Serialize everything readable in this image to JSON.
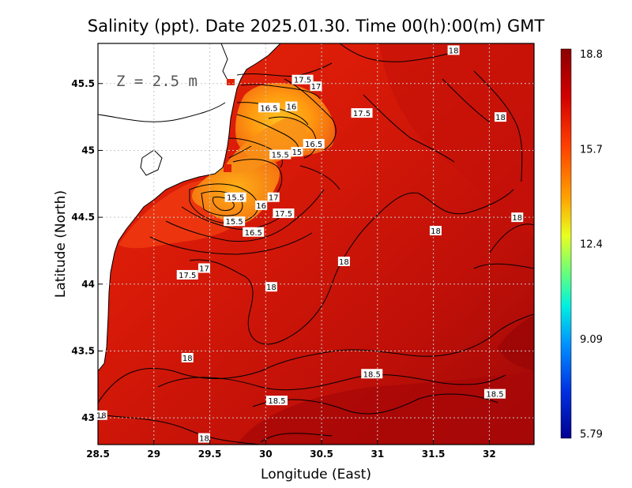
{
  "chart_data": {
    "type": "heatmap",
    "title": "Salinity (ppt). Date 2025.01.30. Time 00(h):00(m) GMT",
    "xlabel": "Longitude (East)",
    "ylabel": "Latitude (North)",
    "xlim": [
      28.5,
      32.4
    ],
    "ylim": [
      42.8,
      45.8
    ],
    "x_ticks": [
      "28.5",
      "29",
      "29.5",
      "30",
      "30.5",
      "31",
      "31.5",
      "32"
    ],
    "y_ticks": [
      "43",
      "43.5",
      "44",
      "44.5",
      "45",
      "45.5"
    ],
    "grid": true,
    "depth_label": "Z = 2.5 m",
    "colorbar": {
      "min": 5.79,
      "max": 18.8,
      "labels": [
        "18.8",
        "15.7",
        "12.4",
        "9.09",
        "5.79"
      ],
      "colors": [
        "#8b0000",
        "#e00000",
        "#ff7000",
        "#ffd000",
        "#90ff40",
        "#00e8d0",
        "#0090ff",
        "#0020e0",
        "#0000a0"
      ]
    },
    "contour_labels": [
      {
        "text": "18",
        "lon": 31.68,
        "lat": 45.75
      },
      {
        "text": "17.5",
        "lon": 30.33,
        "lat": 45.53
      },
      {
        "text": "17",
        "lon": 30.45,
        "lat": 45.48
      },
      {
        "text": "16.5",
        "lon": 30.03,
        "lat": 45.32
      },
      {
        "text": "16",
        "lon": 30.23,
        "lat": 45.33
      },
      {
        "text": "17.5",
        "lon": 30.86,
        "lat": 45.28
      },
      {
        "text": "18",
        "lon": 32.1,
        "lat": 45.25
      },
      {
        "text": "16.5",
        "lon": 30.43,
        "lat": 45.05
      },
      {
        "text": "15.5",
        "lon": 30.13,
        "lat": 44.97
      },
      {
        "text": "15",
        "lon": 30.28,
        "lat": 44.99
      },
      {
        "text": "15.5",
        "lon": 29.73,
        "lat": 44.65
      },
      {
        "text": "17",
        "lon": 30.07,
        "lat": 44.65
      },
      {
        "text": "16",
        "lon": 29.96,
        "lat": 44.59
      },
      {
        "text": "17.5",
        "lon": 30.16,
        "lat": 44.53
      },
      {
        "text": "15.5",
        "lon": 29.72,
        "lat": 44.47
      },
      {
        "text": "16.5",
        "lon": 29.89,
        "lat": 44.39
      },
      {
        "text": "18",
        "lon": 31.52,
        "lat": 44.4
      },
      {
        "text": "18",
        "lon": 32.25,
        "lat": 44.5
      },
      {
        "text": "18",
        "lon": 30.7,
        "lat": 44.17
      },
      {
        "text": "17",
        "lon": 29.45,
        "lat": 44.12
      },
      {
        "text": "17.5",
        "lon": 29.3,
        "lat": 44.07
      },
      {
        "text": "18",
        "lon": 30.05,
        "lat": 43.98
      },
      {
        "text": "18",
        "lon": 29.3,
        "lat": 43.45
      },
      {
        "text": "18.5",
        "lon": 30.95,
        "lat": 43.33
      },
      {
        "text": "18.5",
        "lon": 30.1,
        "lat": 43.13
      },
      {
        "text": "18.5",
        "lon": 32.05,
        "lat": 43.18
      },
      {
        "text": "18",
        "lon": 28.53,
        "lat": 43.02
      },
      {
        "text": "18",
        "lon": 29.45,
        "lat": 42.85
      }
    ]
  }
}
